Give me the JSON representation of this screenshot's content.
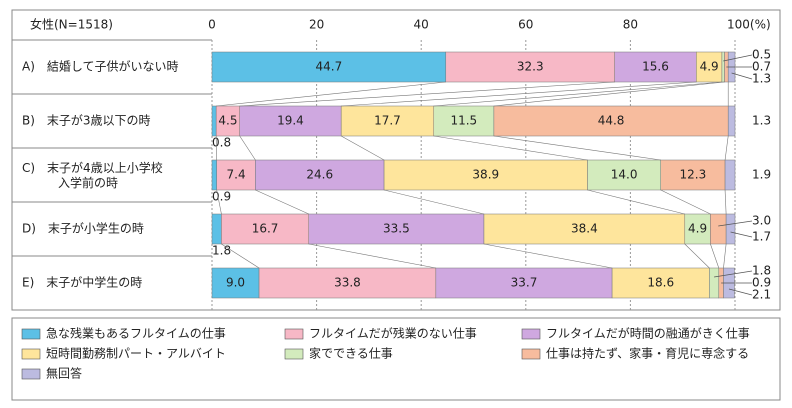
{
  "chart_data": {
    "type": "stacked-bar-horizontal",
    "header": "女性(N=1518)",
    "categories": [
      "A)　結婚して子供がいない時",
      "B)　末子が3歳以下の時",
      "C)　末子が4歳以上小学校入学前の時",
      "D)　末子が小学生の時",
      "E)　末子が中学生の時"
    ],
    "series": [
      {
        "name": "急な残業もあるフルタイムの仕事",
        "color": "#5cc0e6",
        "values": [
          44.7,
          0.8,
          0.9,
          1.8,
          9.0
        ],
        "value_labels": [
          "44.7",
          "0.8",
          "0.9",
          "1.8",
          "9.0"
        ]
      },
      {
        "name": "フルタイムだが残業のない仕事",
        "color": "#f7b8c6",
        "values": [
          32.3,
          4.5,
          7.4,
          16.7,
          33.8
        ],
        "value_labels": [
          "32.3",
          "4.5",
          "7.4",
          "16.7",
          "33.8"
        ]
      },
      {
        "name": "フルタイムだが時間の融通がきく仕事",
        "color": "#cfa8e0",
        "values": [
          15.6,
          19.4,
          24.6,
          33.5,
          33.7
        ],
        "value_labels": [
          "15.6",
          "19.4",
          "24.6",
          "33.5",
          "33.7"
        ]
      },
      {
        "name": "短時間勤務制パート・アルバイト",
        "color": "#fee59c",
        "values": [
          4.9,
          17.7,
          38.9,
          38.4,
          18.6
        ],
        "value_labels": [
          "4.9",
          "17.7",
          "38.9",
          "38.4",
          "18.6"
        ]
      },
      {
        "name": "家でできる仕事",
        "color": "#d3ebbd",
        "values": [
          0.5,
          11.5,
          14.0,
          4.9,
          1.8
        ],
        "value_labels": [
          "0.5",
          "11.5",
          "14.0",
          "4.9",
          "1.8"
        ]
      },
      {
        "name": "仕事は持たず、家事・育児に専念する",
        "color": "#f7bc9e",
        "values": [
          0.7,
          44.8,
          12.3,
          3.0,
          0.9
        ],
        "value_labels": [
          "0.7",
          "44.8",
          "12.3",
          "3.0",
          "0.9"
        ]
      },
      {
        "name": "無回答",
        "color": "#bcbbe0",
        "values": [
          1.3,
          1.3,
          1.9,
          1.7,
          2.1
        ],
        "value_labels": [
          "1.3",
          "1.3",
          "1.9",
          "1.7",
          "2.1"
        ]
      }
    ],
    "xlim": [
      0,
      100
    ],
    "xticks": [
      0,
      20,
      40,
      60,
      80,
      {
        "value": 100,
        "label": "100(%)"
      }
    ],
    "grid": true
  }
}
